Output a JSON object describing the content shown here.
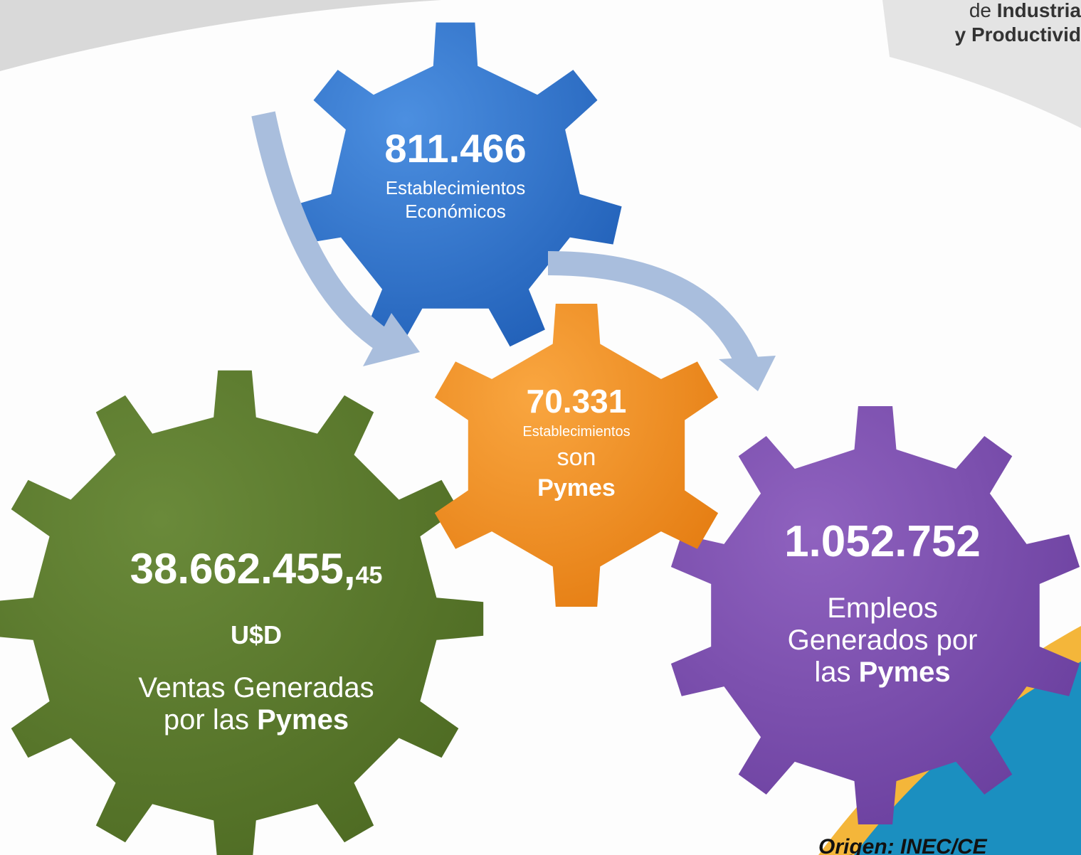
{
  "header": {
    "logo_line1_a": "de",
    "logo_line1_b": "Industria",
    "logo_line2": "y Productivid"
  },
  "gears": [
    {
      "number": "811.466",
      "lines": [
        "Establecimientos",
        "Económicos"
      ]
    },
    {
      "number": "70.331",
      "lines": [
        "Establecimientos",
        "son",
        "Pymes"
      ]
    },
    {
      "number": "38.662.455,",
      "number_small": "45",
      "unit": "U$D",
      "lines": [
        "Ventas Generadas",
        "por las",
        "Pymes"
      ]
    },
    {
      "number": "1.052.752",
      "lines": [
        "Empleos",
        "Generados por",
        "las",
        "Pymes"
      ]
    }
  ],
  "source": "Origen: INEC/CE"
}
